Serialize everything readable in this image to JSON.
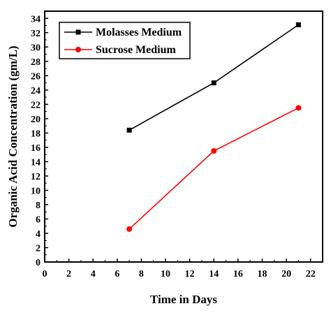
{
  "chart_data": {
    "type": "line",
    "title": "",
    "xlabel": "Time in Days",
    "ylabel": "Organic Acid Concentration (gm/L)",
    "xlim": [
      0,
      23
    ],
    "ylim": [
      0,
      35
    ],
    "x_ticks": [
      0,
      2,
      4,
      6,
      8,
      10,
      12,
      14,
      16,
      18,
      20,
      22
    ],
    "y_ticks": [
      0,
      2,
      4,
      6,
      8,
      10,
      12,
      14,
      16,
      18,
      20,
      22,
      24,
      26,
      28,
      30,
      32,
      34
    ],
    "grid": false,
    "legend_position": "top-left",
    "series": [
      {
        "name": "Molasses Medium",
        "color": "#000000",
        "marker": "square",
        "x": [
          7,
          14,
          21
        ],
        "y": [
          18.4,
          25.0,
          33.1
        ]
      },
      {
        "name": "Sucrose Medium",
        "color": "#ff0000",
        "marker": "circle",
        "x": [
          7,
          14,
          21
        ],
        "y": [
          4.6,
          15.5,
          21.5
        ]
      }
    ]
  }
}
